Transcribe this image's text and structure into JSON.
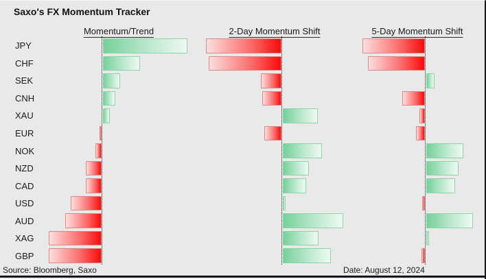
{
  "header": {
    "title": "Saxo's FX Momentum Tracker"
  },
  "panels": [
    {
      "header": "Momentum/Trend"
    },
    {
      "header": "2-Day Momentum Shift"
    },
    {
      "header": "5-Day Momentum Shift"
    }
  ],
  "footer": {
    "source": "Source: Bloomberg, Saxo",
    "date": "Date: August 12, 2024"
  },
  "colors": {
    "background": "#e9e9e9",
    "positive_strong": "#76d09b",
    "positive_light": "#eef9f2",
    "positive_border": "#8fd3a9",
    "negative_strong": "#fb0a0a",
    "negative_light": "#fcdede",
    "negative_border": "#d98c8c",
    "zero_line": "#222222",
    "bottom_rule": "#15151c",
    "text": "#1b1b1b"
  },
  "chart_data": {
    "type": "bar",
    "orientation": "horizontal",
    "title": "Saxo's FX Momentum Tracker",
    "values_unit": "relative momentum, estimated from bar lengths in px (chart shows no numeric axis)",
    "positive_meaning": "green bar extending right of dotted zero line",
    "negative_meaning": "red bar extending left of dotted zero line",
    "legend_position": "none",
    "grid": false,
    "categories": [
      "JPY",
      "CHF",
      "SEK",
      "CNH",
      "XAU",
      "EUR",
      "NOK",
      "NZD",
      "CAD",
      "USD",
      "AUD",
      "XAG",
      "GBP"
    ],
    "series": [
      {
        "name": "Momentum/Trend",
        "values": [
          123,
          54,
          25,
          18,
          10,
          -3,
          -9,
          -23,
          -23,
          -45,
          -53,
          -77,
          -77
        ]
      },
      {
        "name": "2-Day Momentum Shift",
        "values": [
          -110,
          -106,
          -30,
          -28,
          51,
          -25,
          57,
          38,
          34,
          4,
          88,
          52,
          70
        ]
      },
      {
        "name": "5-Day Momentum Shift",
        "values": [
          -91,
          -83,
          12,
          -33,
          -8,
          -13,
          54,
          47,
          42,
          -4,
          68,
          4,
          -5
        ]
      }
    ]
  }
}
